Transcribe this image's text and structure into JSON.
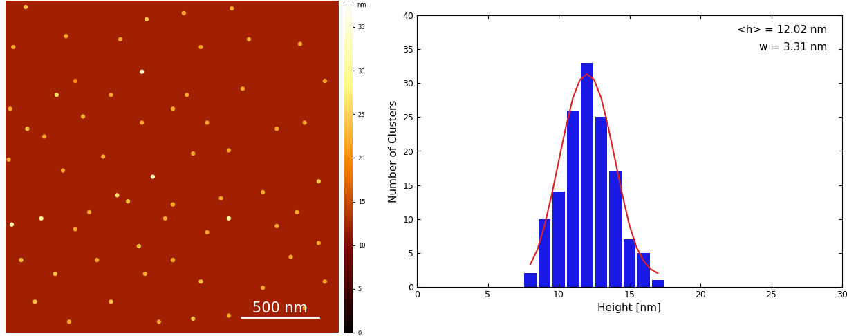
{
  "chart_data": [
    {
      "type": "image",
      "xlim": [
        0,
        2150
      ],
      "ylim": [
        0,
        2150
      ],
      "tick_labels": false,
      "background": 12,
      "clusters": [
        [
          130,
          2110,
          24
        ],
        [
          910,
          2030,
          24
        ],
        [
          1150,
          2070,
          22
        ],
        [
          1460,
          2100,
          22
        ],
        [
          390,
          1920,
          22
        ],
        [
          740,
          1900,
          22
        ],
        [
          50,
          1850,
          22
        ],
        [
          880,
          1690,
          35
        ],
        [
          1260,
          1850,
          22
        ],
        [
          1570,
          1900,
          22
        ],
        [
          1900,
          1870,
          22
        ],
        [
          330,
          1540,
          26
        ],
        [
          680,
          1540,
          22
        ],
        [
          450,
          1630,
          20
        ],
        [
          1170,
          1540,
          22
        ],
        [
          1530,
          1580,
          22
        ],
        [
          2060,
          1630,
          22
        ],
        [
          30,
          1450,
          22
        ],
        [
          140,
          1320,
          24
        ],
        [
          500,
          1400,
          22
        ],
        [
          880,
          1360,
          22
        ],
        [
          1080,
          1450,
          22
        ],
        [
          1300,
          1360,
          22
        ],
        [
          1750,
          1320,
          22
        ],
        [
          250,
          1270,
          22
        ],
        [
          1930,
          1360,
          22
        ],
        [
          20,
          1120,
          22
        ],
        [
          630,
          1140,
          22
        ],
        [
          950,
          1010,
          33
        ],
        [
          1210,
          1160,
          22
        ],
        [
          1440,
          1180,
          22
        ],
        [
          2020,
          980,
          24
        ],
        [
          370,
          1050,
          22
        ],
        [
          720,
          890,
          26
        ],
        [
          790,
          850,
          24
        ],
        [
          540,
          780,
          22
        ],
        [
          1080,
          830,
          22
        ],
        [
          1390,
          870,
          22
        ],
        [
          1660,
          910,
          22
        ],
        [
          1880,
          780,
          22
        ],
        [
          40,
          700,
          32
        ],
        [
          230,
          740,
          30
        ],
        [
          450,
          670,
          22
        ],
        [
          1030,
          740,
          22
        ],
        [
          1440,
          740,
          30
        ],
        [
          1750,
          690,
          22
        ],
        [
          860,
          560,
          24
        ],
        [
          1300,
          650,
          22
        ],
        [
          2020,
          580,
          22
        ],
        [
          100,
          470,
          24
        ],
        [
          590,
          470,
          22
        ],
        [
          1080,
          470,
          22
        ],
        [
          1840,
          490,
          22
        ],
        [
          320,
          380,
          24
        ],
        [
          900,
          380,
          22
        ],
        [
          1260,
          330,
          24
        ],
        [
          1660,
          290,
          22
        ],
        [
          2060,
          330,
          22
        ],
        [
          190,
          200,
          24
        ],
        [
          680,
          200,
          24
        ],
        [
          990,
          70,
          22
        ],
        [
          1440,
          110,
          22
        ],
        [
          1930,
          160,
          22
        ],
        [
          410,
          70,
          22
        ],
        [
          1210,
          90,
          24
        ]
      ],
      "colorbar": {
        "label": "nm",
        "range": [
          0,
          38
        ],
        "ticks": [
          0,
          5,
          10,
          15,
          20,
          25,
          30,
          35
        ]
      },
      "scale_bar": {
        "length": 500,
        "label": "500 nm"
      }
    },
    {
      "type": "histogram",
      "x_label": "Height [nm]",
      "y_label": "Number of Clusters",
      "bins": [
        7.5,
        8.5,
        9.5,
        10.5,
        11.5,
        12.5,
        13.5,
        14.5,
        15.5,
        16.5,
        17.5
      ],
      "values": [
        2,
        10,
        14,
        26,
        33,
        25,
        17,
        7,
        5,
        1
      ],
      "color": "#1a1ae6",
      "fit": {
        "type": "line",
        "color": "#e02020",
        "x": [
          8,
          8.5,
          9,
          9.5,
          10,
          10.5,
          11,
          11.5,
          12,
          12.5,
          13,
          13.5,
          14,
          14.5,
          15,
          15.5,
          16,
          16.5,
          17
        ],
        "values": [
          3.3,
          5.5,
          9,
          13.5,
          18.5,
          23.5,
          27.8,
          30.5,
          31.3,
          30.5,
          27.8,
          23.5,
          18.5,
          13.5,
          9,
          5.8,
          3.8,
          2.6,
          2
        ]
      },
      "annotations": [
        "<h> = 12.02 nm",
        "w = 3.31 nm"
      ],
      "xlim": [
        0,
        30
      ],
      "xticks": [
        0,
        5,
        10,
        15,
        20,
        25,
        30
      ],
      "ylim": [
        0,
        40
      ],
      "yticks": [
        0,
        5,
        10,
        15,
        20,
        25,
        30,
        35,
        40
      ]
    }
  ]
}
